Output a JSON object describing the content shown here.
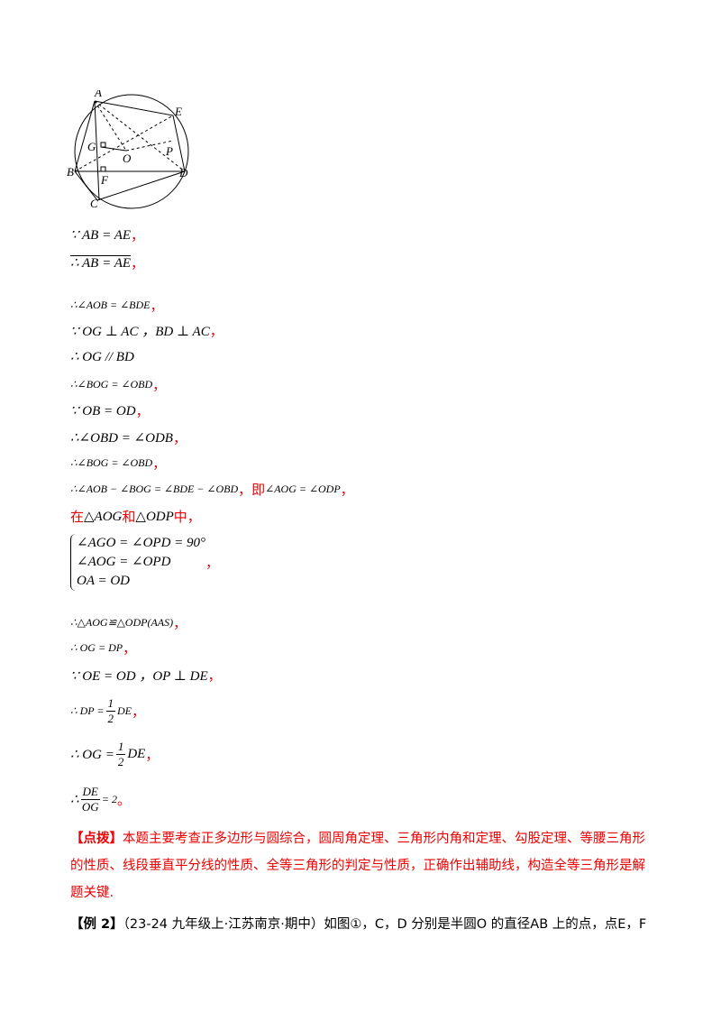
{
  "figure": {
    "labels": [
      "A",
      "E",
      "G",
      "O",
      "P",
      "B",
      "F",
      "D",
      "C"
    ]
  },
  "steps": [
    [
      {
        "text": "∵ AB = AE",
        "style": "math"
      },
      {
        "text": "，",
        "style": "red"
      }
    ],
    [
      {
        "text": "∴ AB = AE",
        "style": "arc"
      },
      {
        "text": "，",
        "style": "red"
      }
    ],
    [
      {
        "text": "∴∠AOB = ∠BDE",
        "style": "small"
      },
      {
        "text": "，",
        "style": "red"
      }
    ],
    [
      {
        "text": "∵ OG ⊥ AC ，BD ⊥ AC",
        "style": "math"
      },
      {
        "text": "，",
        "style": "red"
      }
    ],
    [
      {
        "text": "∴ OG // BD",
        "style": "math"
      }
    ],
    [
      {
        "text": "∴∠BOG = ∠OBD",
        "style": "small"
      },
      {
        "text": "，",
        "style": "red"
      }
    ],
    [
      {
        "text": "∵ OB = OD",
        "style": "math"
      },
      {
        "text": "，",
        "style": "red"
      }
    ],
    [
      {
        "text": "∴∠OBD = ∠ODB",
        "style": "math"
      },
      {
        "text": "，",
        "style": "red"
      }
    ],
    [
      {
        "text": "∴∠BOG = ∠OBD",
        "style": "small"
      },
      {
        "text": "，",
        "style": "red"
      }
    ],
    [
      {
        "text": "∴∠AOB − ∠BOG = ∠BDE − ∠OBD",
        "style": "small"
      },
      {
        "text": "，即",
        "style": "red"
      },
      {
        "text": "∠AOG = ∠ODP",
        "style": "small"
      },
      {
        "text": "，",
        "style": "red"
      }
    ],
    [
      {
        "text": "在",
        "style": "red"
      },
      {
        "text": "△AOG",
        "style": "math"
      },
      {
        "text": "和",
        "style": "red"
      },
      {
        "text": "△ODP",
        "style": "math"
      },
      {
        "text": "中，",
        "style": "red"
      }
    ],
    [
      {
        "system": [
          "∠AGO = ∠OPD = 90°",
          "∠AOG = ∠OPD",
          "OA = OD"
        ]
      },
      {
        "text": "，",
        "style": "red"
      }
    ],
    [
      {
        "text": "∴△AOG≌△ODP(AAS)",
        "style": "small"
      },
      {
        "text": "，",
        "style": "red"
      }
    ],
    [
      {
        "text": "∴ OG = DP",
        "style": "small"
      },
      {
        "text": "，",
        "style": "red"
      }
    ],
    [
      {
        "text": "∵ OE = OD ，OP ⊥ DE",
        "style": "math"
      },
      {
        "text": "，",
        "style": "red"
      }
    ],
    [
      {
        "text": "∴ DP = ",
        "style": "small"
      },
      {
        "num": "1",
        "den": "2"
      },
      {
        "text": "DE",
        "style": "small"
      },
      {
        "text": "，",
        "style": "red"
      }
    ],
    [
      {
        "text": "∴ OG = ",
        "style": "math"
      },
      {
        "num": "1",
        "den": "2"
      },
      {
        "text": "DE",
        "style": "math"
      },
      {
        "text": "，",
        "style": "red"
      }
    ],
    [
      {
        "text": "∴ ",
        "style": "math"
      },
      {
        "num": "DE",
        "den": "OG"
      },
      {
        "text": " = 2",
        "style": "small"
      },
      {
        "text": "。",
        "style": "red"
      }
    ]
  ],
  "tip": {
    "label": "【点拨】",
    "text": "本题主要考查正多边形与圆综合，圆周角定理、三角形内角和定理、勾股定理、等腰三角形的性质、线段垂直平分线的性质、全等三角形的判定与性质，正确作出辅助线，构造全等三角形是解题关键."
  },
  "example": {
    "label": "【例 2】",
    "text": "（23-24 九年级上·江苏南京·期中）如图①，C，D 分别是半圆O 的直径AB 上的点，点E，F"
  }
}
